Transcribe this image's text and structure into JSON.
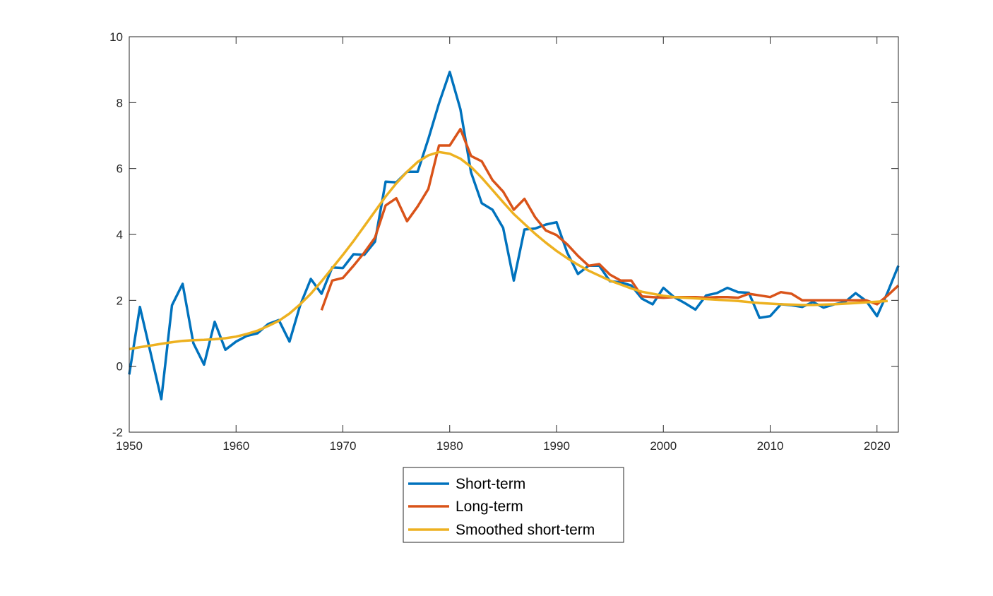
{
  "colors": {
    "short_term": "#0072BD",
    "long_term": "#D95319",
    "smoothed": "#EDB120",
    "axis": "#262626"
  },
  "chart_data": {
    "type": "line",
    "title": "",
    "xlabel": "",
    "ylabel": "",
    "xlim": [
      1950,
      2022
    ],
    "ylim": [
      -2,
      10
    ],
    "x_ticks": [
      1950,
      1960,
      1970,
      1980,
      1990,
      2000,
      2010,
      2020
    ],
    "y_ticks": [
      -2,
      0,
      2,
      4,
      6,
      8,
      10
    ],
    "grid": false,
    "legend_position": "bottom-center, outside",
    "series": [
      {
        "name": "Short-term",
        "color": "#0072BD",
        "x": [
          1950,
          1951,
          1952,
          1953,
          1954,
          1955,
          1956,
          1957,
          1958,
          1959,
          1960,
          1961,
          1962,
          1963,
          1964,
          1965,
          1966,
          1967,
          1968,
          1969,
          1970,
          1971,
          1972,
          1973,
          1974,
          1975,
          1976,
          1977,
          1978,
          1979,
          1980,
          1981,
          1982,
          1983,
          1984,
          1985,
          1986,
          1987,
          1988,
          1989,
          1990,
          1991,
          1992,
          1993,
          1994,
          1995,
          1996,
          1997,
          1998,
          1999,
          2000,
          2001,
          2002,
          2003,
          2004,
          2005,
          2006,
          2007,
          2008,
          2009,
          2010,
          2011,
          2012,
          2013,
          2014,
          2015,
          2016,
          2017,
          2018,
          2019,
          2020,
          2021,
          2022
        ],
        "y": [
          -0.25,
          1.8,
          0.4,
          -1.0,
          1.85,
          2.5,
          0.7,
          0.05,
          1.35,
          0.5,
          0.75,
          0.92,
          1.0,
          1.28,
          1.4,
          0.75,
          1.85,
          2.65,
          2.2,
          3.0,
          2.98,
          3.4,
          3.38,
          3.78,
          5.6,
          5.58,
          5.9,
          5.9,
          6.9,
          7.98,
          8.93,
          7.8,
          5.88,
          4.95,
          4.75,
          4.2,
          2.6,
          4.15,
          4.18,
          4.3,
          4.37,
          3.45,
          2.8,
          3.05,
          3.05,
          2.58,
          2.55,
          2.45,
          2.05,
          1.88,
          2.38,
          2.1,
          1.92,
          1.72,
          2.15,
          2.22,
          2.38,
          2.25,
          2.23,
          1.47,
          1.52,
          1.88,
          1.85,
          1.8,
          1.95,
          1.78,
          1.88,
          1.95,
          2.22,
          1.98,
          1.52,
          2.25,
          3.05
        ]
      },
      {
        "name": "Long-term",
        "color": "#D95319",
        "x": [
          1968,
          1969,
          1970,
          1971,
          1972,
          1973,
          1974,
          1975,
          1976,
          1977,
          1978,
          1979,
          1980,
          1981,
          1982,
          1983,
          1984,
          1985,
          1986,
          1987,
          1988,
          1989,
          1990,
          1991,
          1992,
          1993,
          1994,
          1995,
          1996,
          1997,
          1998,
          1999,
          2000,
          2001,
          2002,
          2003,
          2004,
          2005,
          2006,
          2007,
          2008,
          2009,
          2010,
          2011,
          2012,
          2013,
          2014,
          2015,
          2016,
          2017,
          2018,
          2019,
          2020,
          2021,
          2022
        ],
        "y": [
          1.7,
          2.6,
          2.68,
          3.05,
          3.45,
          3.9,
          4.88,
          5.1,
          4.4,
          4.85,
          5.38,
          6.7,
          6.7,
          7.2,
          6.38,
          6.22,
          5.65,
          5.3,
          4.75,
          5.08,
          4.52,
          4.12,
          3.98,
          3.7,
          3.35,
          3.05,
          3.1,
          2.78,
          2.6,
          2.6,
          2.12,
          2.1,
          2.08,
          2.1,
          2.1,
          2.1,
          2.08,
          2.1,
          2.1,
          2.08,
          2.2,
          2.15,
          2.1,
          2.25,
          2.2,
          2.0,
          2.0,
          2.0,
          2.0,
          2.0,
          2.0,
          2.0,
          1.88,
          2.15,
          2.45
        ]
      },
      {
        "name": "Smoothed short-term",
        "color": "#EDB120",
        "x": [
          1950,
          1951,
          1952,
          1953,
          1954,
          1955,
          1956,
          1957,
          1958,
          1959,
          1960,
          1961,
          1962,
          1963,
          1964,
          1965,
          1966,
          1967,
          1968,
          1969,
          1970,
          1971,
          1972,
          1973,
          1974,
          1975,
          1976,
          1977,
          1978,
          1979,
          1980,
          1981,
          1982,
          1983,
          1984,
          1985,
          1986,
          1987,
          1988,
          1989,
          1990,
          1991,
          1992,
          1993,
          1994,
          1995,
          1996,
          1997,
          1998,
          1999,
          2000,
          2001,
          2002,
          2003,
          2004,
          2005,
          2006,
          2007,
          2008,
          2009,
          2010,
          2011,
          2012,
          2013,
          2014,
          2015,
          2016,
          2017,
          2018,
          2019,
          2020,
          2021
        ],
        "y": [
          0.52,
          0.58,
          0.63,
          0.68,
          0.73,
          0.77,
          0.79,
          0.8,
          0.82,
          0.85,
          0.9,
          0.98,
          1.08,
          1.22,
          1.38,
          1.6,
          1.88,
          2.2,
          2.58,
          2.98,
          3.38,
          3.8,
          4.25,
          4.7,
          5.15,
          5.55,
          5.9,
          6.2,
          6.4,
          6.5,
          6.45,
          6.3,
          6.05,
          5.72,
          5.35,
          4.98,
          4.62,
          4.32,
          4.02,
          3.75,
          3.5,
          3.28,
          3.08,
          2.9,
          2.75,
          2.6,
          2.48,
          2.36,
          2.26,
          2.2,
          2.14,
          2.1,
          2.08,
          2.06,
          2.04,
          2.02,
          2.0,
          1.98,
          1.95,
          1.92,
          1.9,
          1.88,
          1.87,
          1.86,
          1.86,
          1.87,
          1.88,
          1.9,
          1.92,
          1.94,
          1.96,
          1.98
        ]
      }
    ]
  },
  "legend": {
    "items": [
      {
        "label": "Short-term",
        "color": "#0072BD"
      },
      {
        "label": "Long-term",
        "color": "#D95319"
      },
      {
        "label": "Smoothed short-term",
        "color": "#EDB120"
      }
    ]
  }
}
